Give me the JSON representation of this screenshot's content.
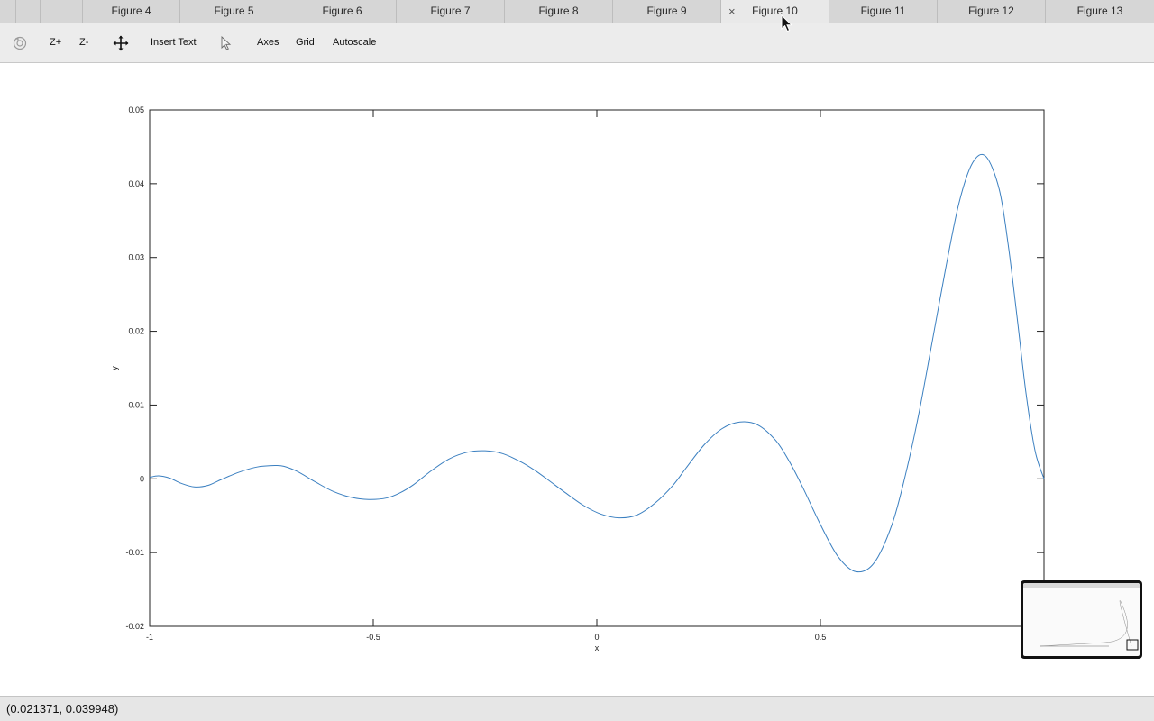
{
  "tabs": {
    "items": [
      {
        "label": "Figure 4",
        "active": false
      },
      {
        "label": "Figure 5",
        "active": false
      },
      {
        "label": "Figure 6",
        "active": false
      },
      {
        "label": "Figure 7",
        "active": false
      },
      {
        "label": "Figure 8",
        "active": false
      },
      {
        "label": "Figure 9",
        "active": false
      },
      {
        "label": "Figure 10",
        "active": true
      },
      {
        "label": "Figure 11",
        "active": false
      },
      {
        "label": "Figure 12",
        "active": false
      },
      {
        "label": "Figure 13",
        "active": false
      }
    ],
    "close_glyph": "×"
  },
  "toolbar": {
    "rotate_icon": "rotate-icon",
    "zoom_in_label": "Z+",
    "zoom_out_label": "Z-",
    "pan_icon": "pan-icon",
    "insert_text_label": "Insert Text",
    "select_icon": "arrow-cursor-icon",
    "axes_label": "Axes",
    "grid_label": "Grid",
    "autoscale_label": "Autoscale"
  },
  "status": {
    "coordinates": "(0.021371, 0.039948)"
  },
  "colors": {
    "line": "#3a7fc0",
    "axis": "#222222"
  },
  "chart_data": {
    "type": "line",
    "title": "",
    "xlabel": "x",
    "ylabel": "y",
    "xlim": [
      -1,
      1
    ],
    "ylim": [
      -0.02,
      0.05
    ],
    "xticks": [
      -1,
      -0.5,
      0,
      0.5
    ],
    "xtick_labels": [
      "-1",
      "-0.5",
      "0",
      "0.5"
    ],
    "yticks": [
      -0.02,
      -0.01,
      0,
      0.01,
      0.02,
      0.03,
      0.04,
      0.05
    ],
    "ytick_labels": [
      "-0.02",
      "-0.01",
      "0",
      "0.01",
      "0.02",
      "0.03",
      "0.04",
      "0.05"
    ],
    "grid": false,
    "series": [
      {
        "x": [
          -1.0,
          -0.98,
          -0.955,
          -0.93,
          -0.9,
          -0.87,
          -0.84,
          -0.8,
          -0.76,
          -0.72,
          -0.7,
          -0.67,
          -0.63,
          -0.59,
          -0.55,
          -0.51,
          -0.47,
          -0.44,
          -0.41,
          -0.37,
          -0.33,
          -0.29,
          -0.25,
          -0.21,
          -0.17,
          -0.14,
          -0.11,
          -0.07,
          -0.03,
          0.01,
          0.05,
          0.09,
          0.13,
          0.17,
          0.2,
          0.24,
          0.28,
          0.32,
          0.36,
          0.4,
          0.43,
          0.46,
          0.5,
          0.54,
          0.58,
          0.62,
          0.66,
          0.69,
          0.72,
          0.75,
          0.78,
          0.81,
          0.84,
          0.87,
          0.9,
          0.92,
          0.94,
          0.96,
          0.98,
          1.0
        ],
        "y": [
          0.0002,
          0.0004,
          0.0001,
          -0.0006,
          -0.0011,
          -0.0009,
          -0.0001,
          0.0009,
          0.0016,
          0.0018,
          0.0017,
          0.001,
          -0.0004,
          -0.0017,
          -0.0025,
          -0.0028,
          -0.0026,
          -0.0019,
          -0.0008,
          0.0011,
          0.0027,
          0.0036,
          0.0038,
          0.0034,
          0.0023,
          0.0012,
          -0.0001,
          -0.0019,
          -0.0036,
          -0.0048,
          -0.0053,
          -0.0049,
          -0.0033,
          -0.0009,
          0.0015,
          0.0046,
          0.0068,
          0.0077,
          0.0073,
          0.0052,
          0.0024,
          -0.0011,
          -0.0062,
          -0.0106,
          -0.0126,
          -0.0114,
          -0.0062,
          0.0005,
          0.0088,
          0.0186,
          0.0285,
          0.0374,
          0.0428,
          0.0437,
          0.0392,
          0.0317,
          0.0218,
          0.0115,
          0.0038,
          0.0
        ]
      }
    ]
  }
}
